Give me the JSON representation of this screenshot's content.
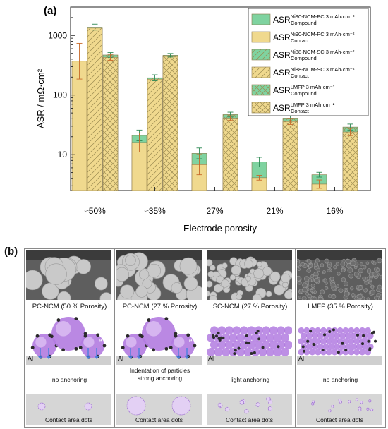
{
  "panel_a_label": "(a)",
  "panel_b_label": "(b)",
  "chart_data": {
    "type": "bar",
    "yscale": "log",
    "ylim": [
      2.5,
      3000
    ],
    "ylabel": "ASR / mΩ·cm²",
    "xlabel": "Electrode porosity",
    "categories": [
      "≈50%",
      "≈35%",
      "27%",
      "21%",
      "16%"
    ],
    "y_ticks": [
      10,
      100,
      1000
    ],
    "grid": false,
    "legend_position": "top-right",
    "series": [
      {
        "name": "ASR Ni90-NCM-PC 3 mAh·cm⁻² Contact",
        "base": "ASR",
        "sup": "Ni90-NCM-PC 3 mAh·cm⁻²",
        "sub": "Contact",
        "color": "#f0d98e",
        "hatch": "none",
        "group": 0,
        "kind": "contact",
        "values": [
          370,
          null,
          null,
          null,
          null
        ],
        "error": [
          0.3,
          null,
          null,
          null,
          null
        ]
      },
      {
        "name": "ASR Ni90-NCM-PC 3 mAh·cm⁻² Compound",
        "base": "ASR",
        "sup": "Ni90-NCM-PC 3 mAh·cm⁻²",
        "sub": "Compound",
        "color": "#7fd3a0",
        "hatch": "none",
        "group": 0,
        "kind": "compound",
        "values": [
          null,
          21,
          10.5,
          7.5,
          4.6
        ],
        "error": [
          null,
          0.09,
          0.09,
          0.08,
          0.04
        ]
      },
      {
        "name": "ASR Ni90-NCM-PC 3 mAh·cm⁻² Contact (bars)",
        "base": "",
        "sup": "",
        "sub": "",
        "color": "#f0d98e",
        "hatch": "none",
        "group": 0,
        "kind": "contact",
        "values": [
          null,
          16,
          6.8,
          4.1,
          3.2
        ],
        "error": [
          null,
          0.16,
          0.17,
          0.04,
          0.07
        ]
      },
      {
        "name": "ASR Ni88-NCM-SC 3 mAh·cm⁻² Compound",
        "base": "ASR",
        "sup": "Ni88-NCM-SC 3 mAh·cm⁻²",
        "sub": "Compound",
        "color": "#7fd3a0",
        "hatch": "diag",
        "group": 1,
        "kind": "compound",
        "values": [
          1380,
          195,
          null,
          null,
          null
        ],
        "error": [
          0.05,
          0.05,
          null,
          null,
          null
        ]
      },
      {
        "name": "ASR Ni88-NCM-SC 3 mAh·cm⁻² Contact",
        "base": "ASR",
        "sup": "Ni88-NCM-SC 3 mAh·cm⁻²",
        "sub": "Contact",
        "color": "#f0d98e",
        "hatch": "diag",
        "group": 1,
        "kind": "contact",
        "values": [
          1330,
          185,
          null,
          null,
          null
        ],
        "error": [
          null,
          null,
          null,
          null,
          null
        ]
      },
      {
        "name": "ASR LMFP 3 mAh·cm⁻² Compound",
        "base": "ASR",
        "sup": "LMFP 3 mAh·cm⁻²",
        "sub": "Compound",
        "color": "#7fd3a0",
        "hatch": "cross",
        "group": 2,
        "kind": "compound",
        "values": [
          470,
          465,
          47,
          41,
          29
        ],
        "error": [
          0.04,
          0.03,
          0.04,
          0.05,
          0.05
        ]
      },
      {
        "name": "ASR LMFP 3 mAh·cm⁻² Contact",
        "base": "ASR",
        "sup": "LMFP 3 mAh·cm⁻²",
        "sub": "Contact",
        "color": "#f0d98e",
        "hatch": "cross",
        "group": 2,
        "kind": "contact",
        "values": [
          430,
          445,
          41,
          36,
          24
        ],
        "error": [
          0.05,
          null,
          0.04,
          0.05,
          0.06
        ]
      }
    ],
    "legend": [
      {
        "sup": "Ni90-NCM-PC 3 mAh·cm⁻²",
        "sub": "Compound",
        "color": "#7fd3a0",
        "hatch": "none"
      },
      {
        "sup": "Ni90-NCM-PC 3 mAh·cm⁻²",
        "sub": "Contact",
        "color": "#f0d98e",
        "hatch": "none"
      },
      {
        "sup": "Ni88-NCM-SC 3 mAh·cm⁻²",
        "sub": "Compound",
        "color": "#7fd3a0",
        "hatch": "diag"
      },
      {
        "sup": "Ni88-NCM-SC 3 mAh·cm⁻²",
        "sub": "Contact",
        "color": "#f0d98e",
        "hatch": "diag"
      },
      {
        "sup": "LMFP 3 mAh·cm⁻²",
        "sub": "Compound",
        "color": "#7fd3a0",
        "hatch": "cross"
      },
      {
        "sup": "LMFP 3 mAh·cm⁻²",
        "sub": "Contact",
        "color": "#f0d98e",
        "hatch": "cross"
      }
    ],
    "legend_base": "ASR"
  },
  "panel_b": {
    "tiles": [
      {
        "caption": "PC-NCM (50 % Porosity)",
        "note": "no anchoring",
        "note2": "",
        "al": "Al",
        "contact": "Contact area dots",
        "particle_style": "large-three",
        "dots": "large"
      },
      {
        "caption": "PC-NCM (27 % Porosity)",
        "note": "Indentation of particles",
        "note2": "strong anchoring",
        "al": "Al",
        "contact": "Contact area dots",
        "particle_style": "large-three",
        "dots": "xlarge"
      },
      {
        "caption": "SC-NCM (27 % Porosity)",
        "note": "light anchoring",
        "note2": "",
        "al": "Al",
        "contact": "Contact area dots",
        "particle_style": "small-many",
        "dots": "small"
      },
      {
        "caption": "LMFP (35 % Porosity)",
        "note": "no anchoring",
        "note2": "",
        "al": "Al",
        "contact": "Contact area dots",
        "particle_style": "tiny-many",
        "dots": "tiny"
      }
    ],
    "electron_label": "e⁻",
    "colors": {
      "particle": "#b27be0",
      "particle_light": "#e2c9f5",
      "carbon": "#2b2b2b",
      "arrow": "#4a7fe0",
      "al": "#cfcfcf",
      "contact_bg": "#d6d6d6"
    }
  }
}
